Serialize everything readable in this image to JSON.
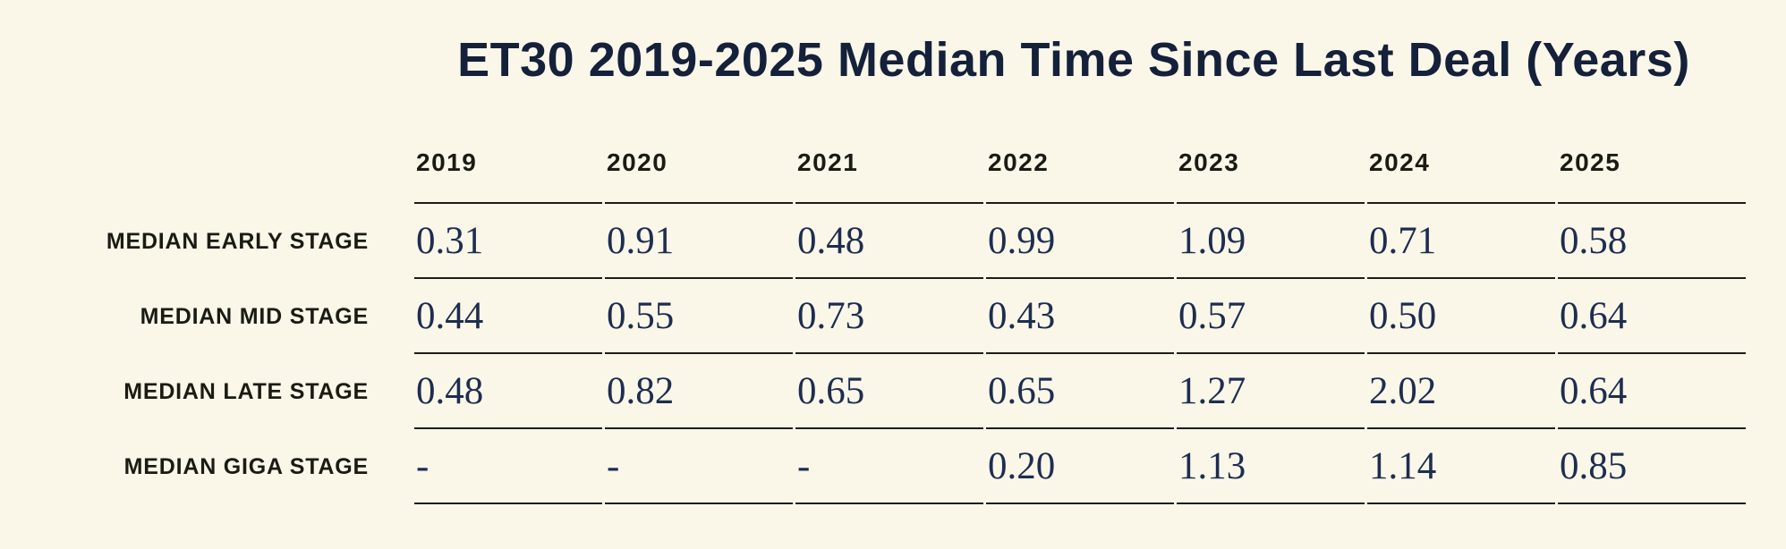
{
  "colors": {
    "background": "#FAF7E9",
    "title_text": "#15203A",
    "header_label_text": "#1B1B14",
    "value_text": "#1E2D4F",
    "rule": "#1C1D17"
  },
  "chart_data": {
    "type": "table",
    "title": "ET30 2019-2025 Median Time Since Last Deal (Years)",
    "columns": [
      "2019",
      "2020",
      "2021",
      "2022",
      "2023",
      "2024",
      "2025"
    ],
    "rows": [
      {
        "label": "MEDIAN EARLY STAGE",
        "values": [
          "0.31",
          "0.91",
          "0.48",
          "0.99",
          "1.09",
          "0.71",
          "0.58"
        ]
      },
      {
        "label": "MEDIAN MID STAGE",
        "values": [
          "0.44",
          "0.55",
          "0.73",
          "0.43",
          "0.57",
          "0.50",
          "0.64"
        ]
      },
      {
        "label": "MEDIAN LATE STAGE",
        "values": [
          "0.48",
          "0.82",
          "0.65",
          "0.65",
          "1.27",
          "2.02",
          "0.64"
        ]
      },
      {
        "label": "MEDIAN GIGA STAGE",
        "values": [
          "-",
          "-",
          "-",
          "0.20",
          "1.13",
          "1.14",
          "0.85"
        ]
      }
    ]
  }
}
